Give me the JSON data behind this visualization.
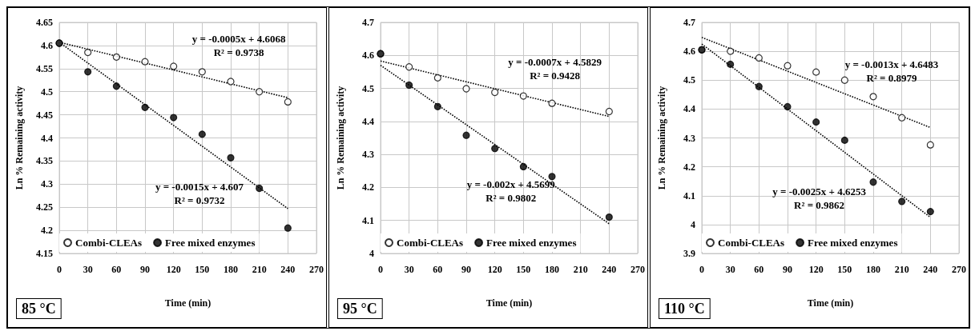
{
  "chart_data": [
    {
      "type": "scatter",
      "xlabel": "Time (min)",
      "ylabel": "Ln % Remaining activity",
      "xlim": [
        0,
        270
      ],
      "xticks": [
        0,
        30,
        60,
        90,
        120,
        150,
        180,
        210,
        240,
        270
      ],
      "ylim": [
        4.15,
        4.65
      ],
      "yticks": [
        4.15,
        4.2,
        4.25,
        4.3,
        4.35,
        4.4,
        4.45,
        4.5,
        4.55,
        4.6,
        4.65
      ],
      "grid": true,
      "legend": "bottom left",
      "series": [
        {
          "name": "Combi-CLEAs",
          "color": "#ffffff",
          "marker": "circle",
          "x": [
            0,
            30,
            60,
            90,
            120,
            150,
            180,
            210,
            240
          ],
          "values": [
            4.605,
            4.585,
            4.575,
            4.565,
            4.555,
            4.543,
            4.522,
            4.5,
            4.478
          ]
        },
        {
          "name": "Free mixed enzymes",
          "color": "#000000",
          "marker": "circle",
          "x": [
            0,
            30,
            60,
            90,
            120,
            150,
            180,
            210,
            240
          ],
          "values": [
            4.605,
            4.543,
            4.512,
            4.466,
            4.444,
            4.408,
            4.357,
            4.291,
            4.205
          ]
        },
        {
          "type": "line",
          "color": "#000000",
          "marker": "none",
          "line_style": "dotted",
          "x": [
            0,
            240
          ],
          "values": [
            4.607,
            4.487
          ]
        },
        {
          "type": "line",
          "color": "#000000",
          "marker": "none",
          "line_style": "dotted",
          "x": [
            0,
            240
          ],
          "values": [
            4.607,
            4.247
          ]
        }
      ],
      "annotations": [
        "y = -0.0005x + 4.6068\nR² = 0.9738",
        "y = -0.0015x + 4.607\nR² = 0.9732",
        "85 °C"
      ]
    },
    {
      "type": "scatter",
      "xlabel": "Time (min)",
      "ylabel": "Ln % Remaining activity",
      "xlim": [
        0,
        270
      ],
      "xticks": [
        0,
        30,
        60,
        90,
        120,
        150,
        180,
        210,
        240,
        270
      ],
      "ylim": [
        4,
        4.7
      ],
      "yticks": [
        4,
        4.1,
        4.2,
        4.3,
        4.4,
        4.5,
        4.6,
        4.7
      ],
      "grid": true,
      "legend": "bottom left",
      "series": [
        {
          "name": "Combi-CLEAs",
          "color": "#ffffff",
          "marker": "circle",
          "x": [
            0,
            30,
            60,
            90,
            120,
            150,
            180,
            240
          ],
          "values": [
            4.605,
            4.565,
            4.532,
            4.499,
            4.488,
            4.477,
            4.455,
            4.43
          ]
        },
        {
          "name": "Free mixed enzymes",
          "color": "#000000",
          "marker": "circle",
          "x": [
            0,
            30,
            60,
            90,
            120,
            150,
            180,
            240
          ],
          "values": [
            4.605,
            4.51,
            4.445,
            4.358,
            4.318,
            4.263,
            4.233,
            4.11
          ]
        },
        {
          "type": "line",
          "color": "#000000",
          "marker": "none",
          "line_style": "dotted",
          "x": [
            0,
            240
          ],
          "values": [
            4.583,
            4.415
          ]
        },
        {
          "type": "line",
          "color": "#000000",
          "marker": "none",
          "line_style": "dotted",
          "x": [
            0,
            240
          ],
          "values": [
            4.57,
            4.09
          ]
        }
      ],
      "annotations": [
        "y = -0.0007x + 4.5829\nR² = 0.9428",
        "y = -0.002x + 4.5699\nR² = 0.9802",
        "95 °C"
      ]
    },
    {
      "type": "scatter",
      "xlabel": "Time (min)",
      "ylabel": "Ln % Remaining activity",
      "xlim": [
        0,
        270
      ],
      "xticks": [
        0,
        30,
        60,
        90,
        120,
        150,
        180,
        210,
        240,
        270
      ],
      "ylim": [
        3.9,
        4.7
      ],
      "yticks": [
        3.9,
        4,
        4.1,
        4.2,
        4.3,
        4.4,
        4.5,
        4.6,
        4.7
      ],
      "grid": true,
      "legend": "bottom left",
      "series": [
        {
          "name": "Combi-CLEAs",
          "color": "#ffffff",
          "marker": "circle",
          "x": [
            0,
            30,
            60,
            90,
            120,
            150,
            180,
            210,
            240
          ],
          "values": [
            4.605,
            4.6,
            4.577,
            4.55,
            4.528,
            4.5,
            4.443,
            4.37,
            4.276
          ]
        },
        {
          "name": "Free mixed enzymes",
          "color": "#000000",
          "marker": "circle",
          "x": [
            0,
            30,
            60,
            90,
            120,
            150,
            180,
            210,
            240
          ],
          "values": [
            4.605,
            4.555,
            4.478,
            4.408,
            4.355,
            4.292,
            4.147,
            4.08,
            4.045
          ]
        },
        {
          "type": "line",
          "color": "#000000",
          "marker": "none",
          "line_style": "dotted",
          "x": [
            0,
            240
          ],
          "values": [
            4.648,
            4.336
          ]
        },
        {
          "type": "line",
          "color": "#000000",
          "marker": "none",
          "line_style": "dotted",
          "x": [
            0,
            240
          ],
          "values": [
            4.625,
            4.025
          ]
        }
      ],
      "annotations": [
        "y = -0.0013x + 4.6483\nR² = 0.8979",
        "y = -0.0025x + 4.6253\nR² = 0.9862",
        "110 °C"
      ]
    }
  ]
}
